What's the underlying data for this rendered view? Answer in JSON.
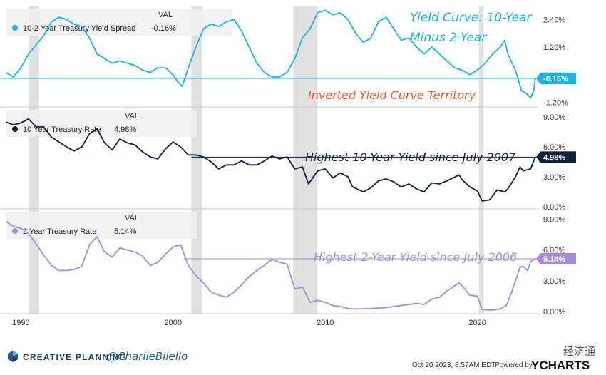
{
  "chart_data": {
    "type": "line",
    "x_range": [
      1989,
      2024
    ],
    "x_ticks": [
      "1990",
      "2000",
      "2010",
      "2020"
    ],
    "recessions": [
      [
        1990.5,
        1991.2
      ],
      [
        2001.2,
        2001.9
      ],
      [
        2007.9,
        2009.5
      ],
      [
        2020.1,
        2020.4
      ]
    ],
    "value_header": "VAL",
    "panels": [
      {
        "name": "10-2 Year Treasury Yield Spread",
        "value": "-0.16%",
        "color": "#1ab3e6",
        "ylim": [
          -1.4,
          3.0
        ],
        "y_ticks": [
          "2.40%",
          "1.20%",
          "0.00%",
          "-1.20%"
        ],
        "y_tick_values": [
          2.4,
          1.2,
          0.0,
          -1.2
        ],
        "current_label": "-0.16%",
        "reference_level": -0.16,
        "annotations": [
          "Yield Curve: 10-Year",
          "Minus 2-Year",
          "Inverted Yield Curve Territory"
        ],
        "annotation_colors": [
          "#1ab3e6",
          "#1ab3e6",
          "#f0553c"
        ],
        "points": [
          [
            1989.0,
            0.1
          ],
          [
            1989.5,
            -0.1
          ],
          [
            1990.0,
            0.3
          ],
          [
            1990.5,
            0.9
          ],
          [
            1991.0,
            1.3
          ],
          [
            1991.5,
            1.7
          ],
          [
            1992.0,
            2.3
          ],
          [
            1992.5,
            2.5
          ],
          [
            1993.0,
            2.4
          ],
          [
            1993.5,
            2.2
          ],
          [
            1994.0,
            2.1
          ],
          [
            1994.5,
            1.6
          ],
          [
            1995.0,
            0.9
          ],
          [
            1995.5,
            0.7
          ],
          [
            1996.0,
            0.5
          ],
          [
            1996.5,
            0.6
          ],
          [
            1997.0,
            0.5
          ],
          [
            1997.5,
            0.4
          ],
          [
            1998.0,
            0.2
          ],
          [
            1998.5,
            0.1
          ],
          [
            1999.0,
            0.3
          ],
          [
            1999.5,
            0.3
          ],
          [
            2000.0,
            0.0
          ],
          [
            2000.3,
            -0.3
          ],
          [
            2000.6,
            -0.5
          ],
          [
            2001.0,
            0.3
          ],
          [
            2001.5,
            1.2
          ],
          [
            2002.0,
            2.0
          ],
          [
            2002.5,
            2.2
          ],
          [
            2003.0,
            2.1
          ],
          [
            2003.5,
            2.3
          ],
          [
            2004.0,
            2.4
          ],
          [
            2004.5,
            1.9
          ],
          [
            2005.0,
            1.2
          ],
          [
            2005.5,
            0.5
          ],
          [
            2006.0,
            0.1
          ],
          [
            2006.5,
            -0.1
          ],
          [
            2007.0,
            -0.1
          ],
          [
            2007.5,
            0.1
          ],
          [
            2008.0,
            0.7
          ],
          [
            2008.5,
            1.6
          ],
          [
            2009.0,
            2.0
          ],
          [
            2009.5,
            2.7
          ],
          [
            2010.0,
            2.8
          ],
          [
            2010.5,
            2.6
          ],
          [
            2011.0,
            2.7
          ],
          [
            2011.5,
            2.4
          ],
          [
            2012.0,
            1.8
          ],
          [
            2012.5,
            1.4
          ],
          [
            2013.0,
            1.6
          ],
          [
            2013.5,
            2.3
          ],
          [
            2014.0,
            2.5
          ],
          [
            2014.5,
            2.0
          ],
          [
            2015.0,
            1.5
          ],
          [
            2015.5,
            1.6
          ],
          [
            2016.0,
            1.2
          ],
          [
            2016.5,
            0.9
          ],
          [
            2017.0,
            1.2
          ],
          [
            2017.5,
            0.9
          ],
          [
            2018.0,
            0.6
          ],
          [
            2018.5,
            0.3
          ],
          [
            2019.0,
            0.2
          ],
          [
            2019.5,
            0.0
          ],
          [
            2020.0,
            0.2
          ],
          [
            2020.5,
            0.5
          ],
          [
            2021.0,
            0.9
          ],
          [
            2021.5,
            1.2
          ],
          [
            2021.8,
            1.5
          ],
          [
            2022.0,
            0.9
          ],
          [
            2022.5,
            0.2
          ],
          [
            2022.9,
            -0.7
          ],
          [
            2023.2,
            -0.8
          ],
          [
            2023.5,
            -1.0
          ],
          [
            2023.7,
            -0.7
          ],
          [
            2023.8,
            -0.16
          ]
        ]
      },
      {
        "name": "10 Year Treasury Rate",
        "value": "4.98%",
        "color": "#0f1f3d",
        "ylim": [
          -0.2,
          10.0
        ],
        "y_ticks": [
          "9.00%",
          "6.00%",
          "3.00%",
          "0.00%"
        ],
        "y_tick_values": [
          9,
          6,
          3,
          0
        ],
        "current_label": "4.98%",
        "reference_level": 4.98,
        "reference_start": 2001.2,
        "annotations": [
          "Highest 10-Year Yield since July 2007"
        ],
        "annotation_colors": [
          "#0f1f3d"
        ],
        "points": [
          [
            1989.0,
            8.5
          ],
          [
            1989.5,
            8.2
          ],
          [
            1990.0,
            8.4
          ],
          [
            1990.5,
            8.8
          ],
          [
            1991.0,
            8.0
          ],
          [
            1991.5,
            8.0
          ],
          [
            1992.0,
            7.0
          ],
          [
            1992.5,
            6.5
          ],
          [
            1993.0,
            6.0
          ],
          [
            1993.5,
            5.6
          ],
          [
            1994.0,
            6.0
          ],
          [
            1994.5,
            7.3
          ],
          [
            1995.0,
            7.8
          ],
          [
            1995.5,
            6.4
          ],
          [
            1996.0,
            5.7
          ],
          [
            1996.5,
            6.8
          ],
          [
            1997.0,
            6.4
          ],
          [
            1997.5,
            6.2
          ],
          [
            1998.0,
            5.5
          ],
          [
            1998.5,
            5.0
          ],
          [
            1999.0,
            4.8
          ],
          [
            1999.5,
            5.8
          ],
          [
            2000.0,
            6.5
          ],
          [
            2000.5,
            6.0
          ],
          [
            2001.0,
            5.2
          ],
          [
            2001.5,
            5.2
          ],
          [
            2002.0,
            5.0
          ],
          [
            2002.5,
            4.5
          ],
          [
            2003.0,
            3.8
          ],
          [
            2003.5,
            4.2
          ],
          [
            2004.0,
            4.2
          ],
          [
            2004.5,
            4.6
          ],
          [
            2005.0,
            4.2
          ],
          [
            2005.5,
            4.2
          ],
          [
            2006.0,
            4.6
          ],
          [
            2006.5,
            5.1
          ],
          [
            2007.0,
            4.8
          ],
          [
            2007.5,
            5.0
          ],
          [
            2008.0,
            3.8
          ],
          [
            2008.5,
            4.0
          ],
          [
            2008.9,
            2.3
          ],
          [
            2009.5,
            3.6
          ],
          [
            2010.0,
            3.8
          ],
          [
            2010.5,
            2.9
          ],
          [
            2011.0,
            3.4
          ],
          [
            2011.5,
            3.0
          ],
          [
            2011.8,
            2.0
          ],
          [
            2012.5,
            1.5
          ],
          [
            2013.0,
            1.9
          ],
          [
            2013.5,
            2.6
          ],
          [
            2014.0,
            2.8
          ],
          [
            2014.5,
            2.5
          ],
          [
            2015.0,
            2.0
          ],
          [
            2015.5,
            2.3
          ],
          [
            2016.0,
            1.8
          ],
          [
            2016.5,
            1.5
          ],
          [
            2017.0,
            2.4
          ],
          [
            2017.5,
            2.3
          ],
          [
            2018.0,
            2.6
          ],
          [
            2018.8,
            3.2
          ],
          [
            2019.0,
            2.7
          ],
          [
            2019.5,
            2.0
          ],
          [
            2020.0,
            1.6
          ],
          [
            2020.3,
            0.6
          ],
          [
            2020.8,
            0.7
          ],
          [
            2021.0,
            1.1
          ],
          [
            2021.3,
            1.7
          ],
          [
            2021.8,
            1.5
          ],
          [
            2022.0,
            1.8
          ],
          [
            2022.5,
            3.0
          ],
          [
            2022.8,
            4.0
          ],
          [
            2023.0,
            3.6
          ],
          [
            2023.5,
            3.8
          ],
          [
            2023.8,
            4.98
          ]
        ]
      },
      {
        "name": "2 Year Treasury Rate",
        "value": "5.14%",
        "color": "#a48ad8",
        "ylim": [
          -0.2,
          10.0
        ],
        "y_ticks": [
          "9.00%",
          "6.00%",
          "3.00%",
          "0.00%"
        ],
        "y_tick_values": [
          9,
          6,
          3,
          0
        ],
        "current_label": "5.14%",
        "reference_level": 5.14,
        "reference_start": 2000.7,
        "annotations": [
          "Highest 2-Year Yield since July 2006"
        ],
        "annotation_colors": [
          "#a48ad8"
        ],
        "points": [
          [
            1989.0,
            8.8
          ],
          [
            1989.5,
            8.3
          ],
          [
            1990.0,
            8.1
          ],
          [
            1990.5,
            7.6
          ],
          [
            1991.0,
            6.6
          ],
          [
            1991.5,
            5.5
          ],
          [
            1992.0,
            4.5
          ],
          [
            1992.5,
            4.0
          ],
          [
            1993.0,
            4.0
          ],
          [
            1993.5,
            4.1
          ],
          [
            1994.0,
            4.4
          ],
          [
            1994.5,
            6.5
          ],
          [
            1995.0,
            7.3
          ],
          [
            1995.5,
            5.8
          ],
          [
            1996.0,
            5.3
          ],
          [
            1996.5,
            6.2
          ],
          [
            1997.0,
            6.0
          ],
          [
            1997.5,
            5.8
          ],
          [
            1998.0,
            5.4
          ],
          [
            1998.5,
            4.5
          ],
          [
            1999.0,
            4.8
          ],
          [
            1999.5,
            5.6
          ],
          [
            2000.0,
            6.3
          ],
          [
            2000.5,
            6.5
          ],
          [
            2001.0,
            4.5
          ],
          [
            2001.5,
            3.5
          ],
          [
            2002.0,
            2.8
          ],
          [
            2002.5,
            1.9
          ],
          [
            2003.0,
            1.6
          ],
          [
            2003.5,
            1.4
          ],
          [
            2004.0,
            1.9
          ],
          [
            2004.5,
            2.6
          ],
          [
            2005.0,
            3.4
          ],
          [
            2005.5,
            4.0
          ],
          [
            2006.0,
            4.5
          ],
          [
            2006.5,
            5.1
          ],
          [
            2007.0,
            4.8
          ],
          [
            2007.5,
            4.6
          ],
          [
            2008.0,
            2.2
          ],
          [
            2008.5,
            2.4
          ],
          [
            2009.0,
            0.9
          ],
          [
            2009.5,
            1.1
          ],
          [
            2010.0,
            0.9
          ],
          [
            2010.5,
            0.6
          ],
          [
            2011.0,
            0.5
          ],
          [
            2011.5,
            0.3
          ],
          [
            2012.0,
            0.25
          ],
          [
            2013.0,
            0.3
          ],
          [
            2014.0,
            0.4
          ],
          [
            2014.5,
            0.5
          ],
          [
            2015.0,
            0.6
          ],
          [
            2015.5,
            0.7
          ],
          [
            2016.0,
            0.8
          ],
          [
            2016.5,
            0.7
          ],
          [
            2017.0,
            1.2
          ],
          [
            2017.5,
            1.4
          ],
          [
            2018.0,
            2.0
          ],
          [
            2018.8,
            2.8
          ],
          [
            2019.0,
            2.5
          ],
          [
            2019.5,
            1.6
          ],
          [
            2020.0,
            1.5
          ],
          [
            2020.3,
            0.2
          ],
          [
            2021.0,
            0.15
          ],
          [
            2021.5,
            0.25
          ],
          [
            2021.9,
            0.6
          ],
          [
            2022.2,
            1.7
          ],
          [
            2022.5,
            3.0
          ],
          [
            2022.8,
            4.3
          ],
          [
            2023.0,
            4.4
          ],
          [
            2023.3,
            4.0
          ],
          [
            2023.5,
            4.9
          ],
          [
            2023.8,
            5.14
          ]
        ]
      }
    ]
  },
  "footer": {
    "brand": "CREATIVE PLANNING",
    "handle": "@CharlieBilello",
    "timestamp": "Oct 20 2023, 8:57AM EDT.",
    "powered_by": "Powered by",
    "ycharts": "YCHARTS",
    "watermark": "经济通"
  },
  "colors": {
    "recession": "#e0e0e0",
    "axis_text": "#333333",
    "grid_border": "#c8c8c8",
    "brand": "#1f3c5a"
  }
}
